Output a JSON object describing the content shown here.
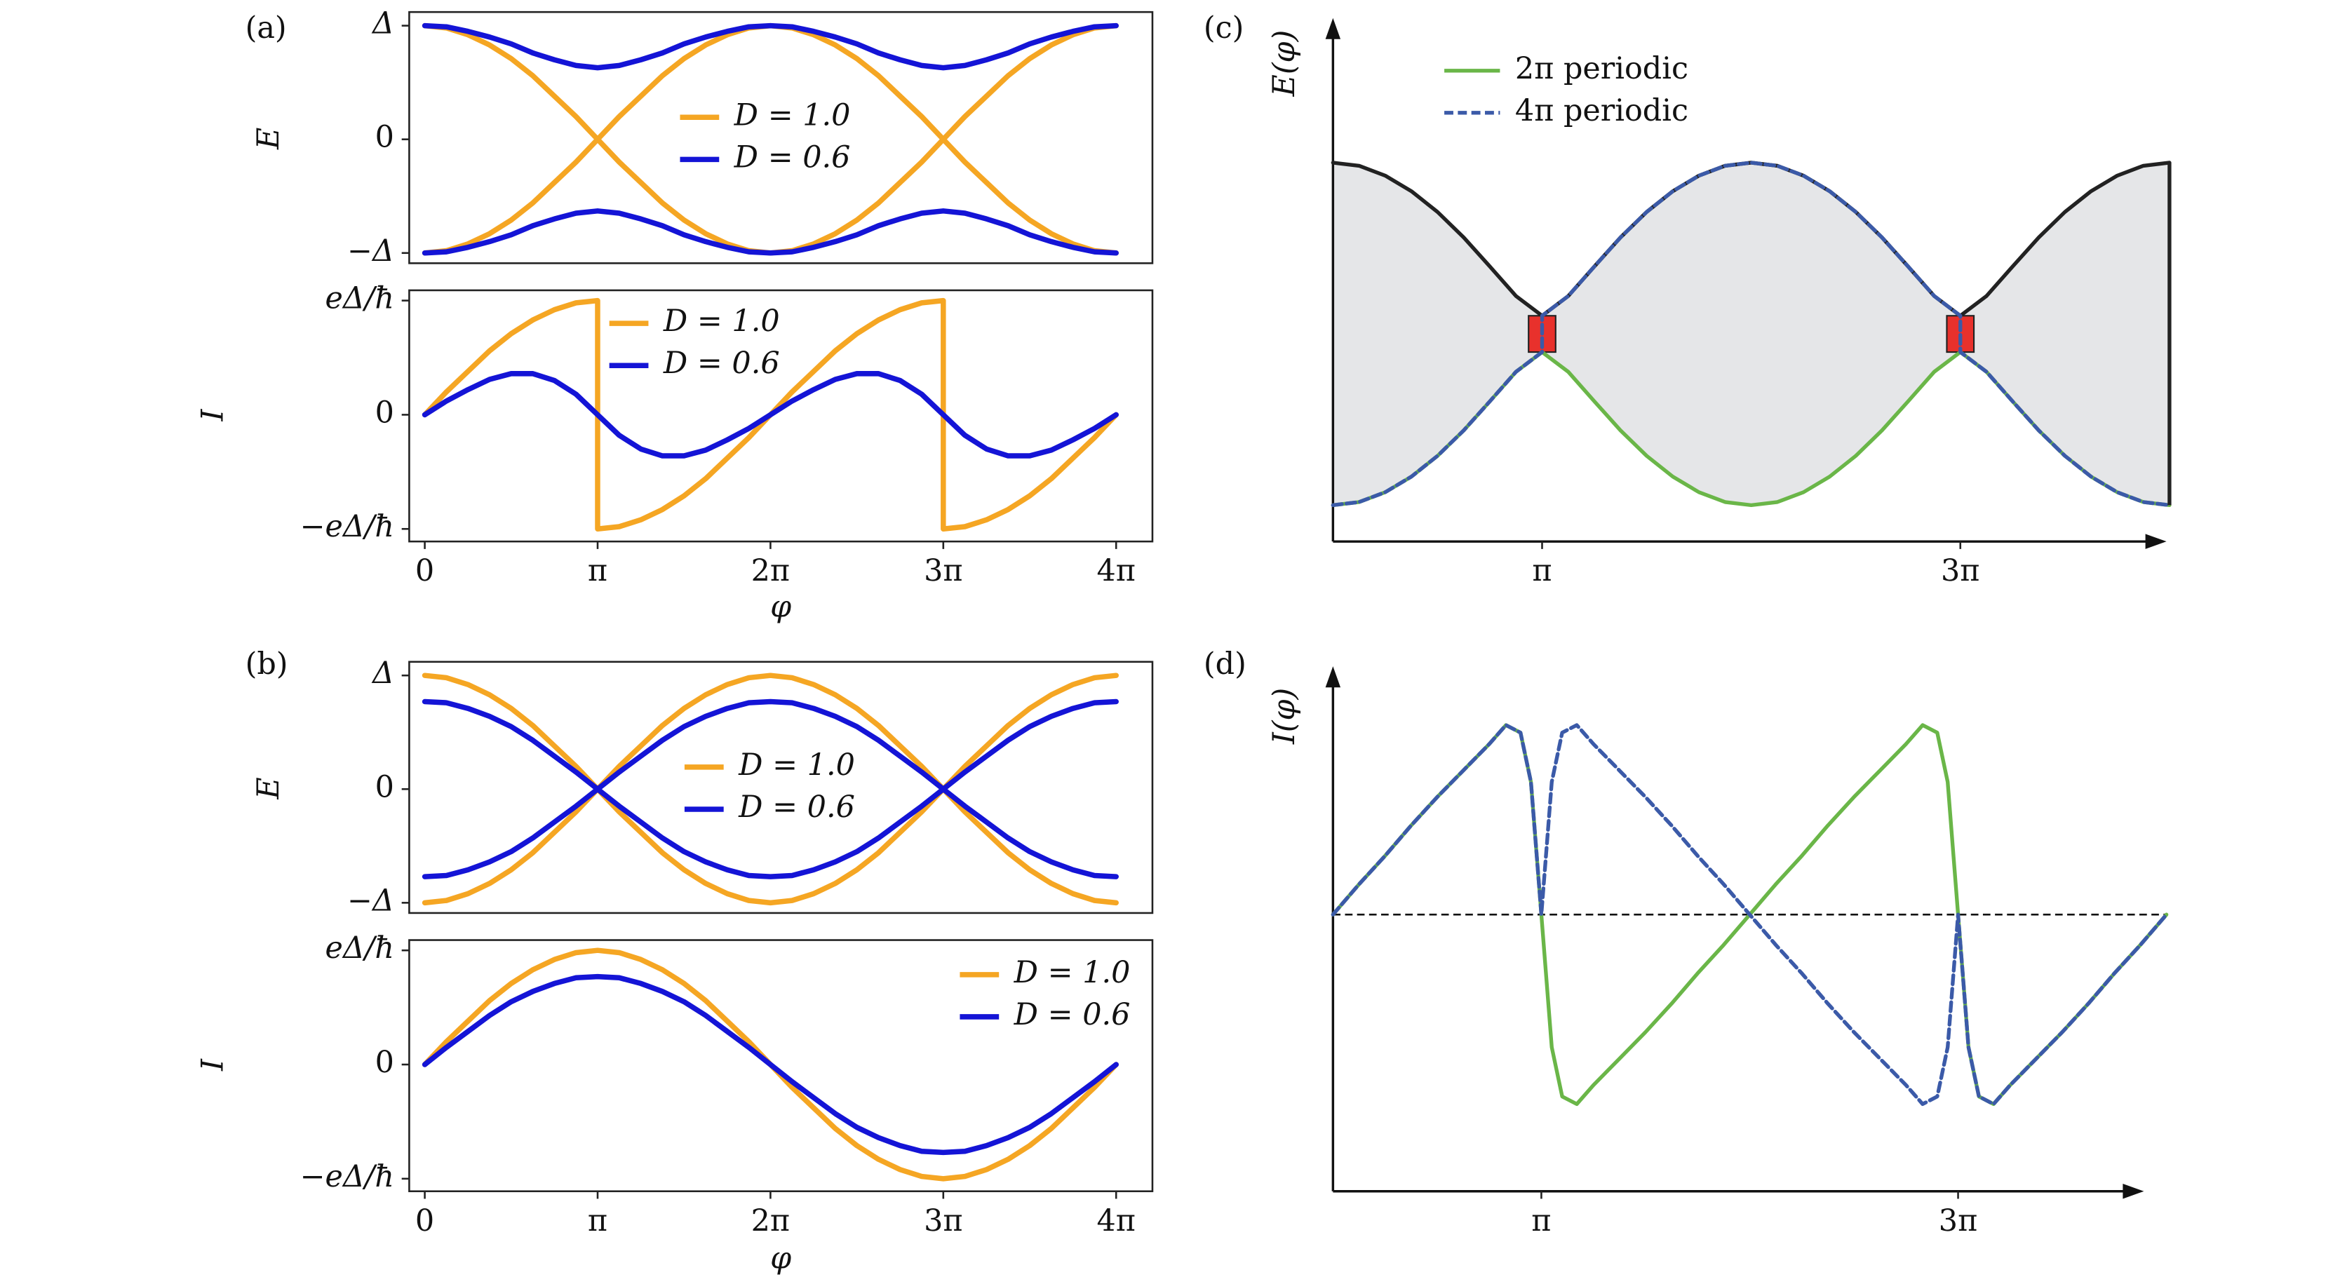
{
  "chart_data": [
    {
      "type": "line",
      "panel": "(a)",
      "ylabel": "E",
      "xlim": [
        -0.09,
        4.21
      ],
      "ylim": [
        -1.09,
        1.12
      ],
      "yticks": [
        {
          "value": -1,
          "label": "−Δ"
        },
        0,
        {
          "value": 1,
          "label": "Δ"
        }
      ],
      "x": [
        0,
        0.125,
        0.25,
        0.375,
        0.5,
        0.625,
        0.75,
        0.875,
        1,
        1.125,
        1.25,
        1.375,
        1.5,
        1.625,
        1.75,
        1.875,
        2,
        2.125,
        2.25,
        2.375,
        2.5,
        2.625,
        2.75,
        2.875,
        3,
        3.125,
        3.25,
        3.375,
        3.5,
        3.625,
        3.75,
        3.875,
        4
      ],
      "series": [
        {
          "name": "D = 1.0",
          "color": "#f5a623",
          "values": [
            1,
            0.98,
            0.92,
            0.83,
            0.71,
            0.56,
            0.38,
            0.2,
            0,
            -0.2,
            -0.38,
            -0.56,
            -0.71,
            -0.83,
            -0.92,
            -0.98,
            -1,
            -0.98,
            -0.92,
            -0.83,
            -0.71,
            -0.56,
            -0.38,
            -0.2,
            0,
            0.2,
            0.38,
            0.56,
            0.71,
            0.83,
            0.92,
            0.98,
            1
          ]
        },
        {
          "color": "#f5a623",
          "values": [
            -1,
            -0.98,
            -0.92,
            -0.83,
            -0.71,
            -0.56,
            -0.38,
            -0.2,
            0,
            0.2,
            0.38,
            0.56,
            0.71,
            0.83,
            0.92,
            0.98,
            1,
            0.98,
            0.92,
            0.83,
            0.71,
            0.56,
            0.38,
            0.2,
            0,
            -0.2,
            -0.38,
            -0.56,
            -0.71,
            -0.83,
            -0.92,
            -0.98,
            -1
          ]
        },
        {
          "name": "D = 0.6",
          "color": "#1414d6",
          "values": [
            1,
            0.99,
            0.95,
            0.9,
            0.84,
            0.76,
            0.7,
            0.65,
            0.63,
            0.65,
            0.7,
            0.76,
            0.84,
            0.9,
            0.95,
            0.99,
            1,
            0.99,
            0.95,
            0.9,
            0.84,
            0.76,
            0.7,
            0.65,
            0.63,
            0.65,
            0.7,
            0.76,
            0.84,
            0.9,
            0.95,
            0.99,
            1
          ]
        },
        {
          "color": "#1414d6",
          "values": [
            -1,
            -0.99,
            -0.95,
            -0.9,
            -0.84,
            -0.76,
            -0.7,
            -0.65,
            -0.63,
            -0.65,
            -0.7,
            -0.76,
            -0.84,
            -0.9,
            -0.95,
            -0.99,
            -1,
            -0.99,
            -0.95,
            -0.9,
            -0.84,
            -0.76,
            -0.7,
            -0.65,
            -0.63,
            -0.65,
            -0.7,
            -0.76,
            -0.84,
            -0.9,
            -0.95,
            -0.99,
            -1
          ]
        }
      ]
    },
    {
      "type": "line",
      "ylabel": "I",
      "xlabel": "φ",
      "xlim": [
        -0.09,
        4.21
      ],
      "ylim": [
        -1.11,
        1.09
      ],
      "xticks": [
        0,
        {
          "value": 1,
          "label": "π"
        },
        {
          "value": 2,
          "label": "2π"
        },
        {
          "value": 3,
          "label": "3π"
        },
        {
          "value": 4,
          "label": "4π"
        }
      ],
      "yticks": [
        {
          "value": -1,
          "label": "−eΔ/ħ"
        },
        0,
        {
          "value": 1,
          "label": "eΔ/ħ"
        }
      ],
      "x": [
        0,
        0.125,
        0.25,
        0.375,
        0.5,
        0.625,
        0.75,
        0.875,
        1,
        1.125,
        1.25,
        1.375,
        1.5,
        1.625,
        1.75,
        1.875,
        2,
        2.125,
        2.25,
        2.375,
        2.5,
        2.625,
        2.75,
        2.875,
        3,
        3.125,
        3.25,
        3.375,
        3.5,
        3.625,
        3.75,
        3.875,
        4
      ],
      "series": [
        {
          "name": "D = 1.0",
          "color": "#f5a623",
          "x": [
            0,
            0.125,
            0.25,
            0.375,
            0.5,
            0.625,
            0.75,
            0.875,
            1,
            1,
            1.125,
            1.25,
            1.375,
            1.5,
            1.625,
            1.75,
            1.875,
            2,
            2.125,
            2.25,
            2.375,
            2.5,
            2.625,
            2.75,
            2.875,
            3,
            3,
            3.125,
            3.25,
            3.375,
            3.5,
            3.625,
            3.75,
            3.875,
            4
          ],
          "values": [
            0,
            0.2,
            0.38,
            0.56,
            0.71,
            0.83,
            0.92,
            0.98,
            1,
            -1,
            -0.98,
            -0.92,
            -0.83,
            -0.71,
            -0.56,
            -0.38,
            -0.2,
            0,
            0.2,
            0.38,
            0.56,
            0.71,
            0.83,
            0.92,
            0.98,
            1,
            -1,
            -0.98,
            -0.92,
            -0.83,
            -0.71,
            -0.56,
            -0.38,
            -0.2,
            0
          ]
        },
        {
          "name": "D = 0.6",
          "color": "#1414d6",
          "values": [
            0,
            0.12,
            0.22,
            0.31,
            0.36,
            0.36,
            0.3,
            0.18,
            0,
            -0.18,
            -0.3,
            -0.36,
            -0.36,
            -0.31,
            -0.22,
            -0.12,
            0,
            0.12,
            0.22,
            0.31,
            0.36,
            0.36,
            0.3,
            0.18,
            0,
            -0.18,
            -0.3,
            -0.36,
            -0.36,
            -0.31,
            -0.22,
            -0.12,
            0
          ]
        }
      ]
    },
    {
      "type": "line",
      "panel": "(b)",
      "ylabel": "E",
      "xlim": [
        -0.09,
        4.21
      ],
      "ylim": [
        -1.09,
        1.12
      ],
      "yticks": [
        {
          "value": -1,
          "label": "−Δ"
        },
        0,
        {
          "value": 1,
          "label": "Δ"
        }
      ],
      "x": [
        0,
        0.125,
        0.25,
        0.375,
        0.5,
        0.625,
        0.75,
        0.875,
        1,
        1.125,
        1.25,
        1.375,
        1.5,
        1.625,
        1.75,
        1.875,
        2,
        2.125,
        2.25,
        2.375,
        2.5,
        2.625,
        2.75,
        2.875,
        3,
        3.125,
        3.25,
        3.375,
        3.5,
        3.625,
        3.75,
        3.875,
        4
      ],
      "series": [
        {
          "name": "D = 1.0",
          "color": "#f5a623",
          "values": [
            1,
            0.98,
            0.92,
            0.83,
            0.71,
            0.56,
            0.38,
            0.2,
            0,
            -0.2,
            -0.38,
            -0.56,
            -0.71,
            -0.83,
            -0.92,
            -0.98,
            -1,
            -0.98,
            -0.92,
            -0.83,
            -0.71,
            -0.56,
            -0.38,
            -0.2,
            0,
            0.2,
            0.38,
            0.56,
            0.71,
            0.83,
            0.92,
            0.98,
            1
          ]
        },
        {
          "color": "#f5a623",
          "values": [
            -1,
            -0.98,
            -0.92,
            -0.83,
            -0.71,
            -0.56,
            -0.38,
            -0.2,
            0,
            0.2,
            0.38,
            0.56,
            0.71,
            0.83,
            0.92,
            0.98,
            1,
            0.98,
            0.92,
            0.83,
            0.71,
            0.56,
            0.38,
            0.2,
            0,
            -0.2,
            -0.38,
            -0.56,
            -0.71,
            -0.83,
            -0.92,
            -0.98,
            -1
          ]
        },
        {
          "name": "D = 0.6",
          "color": "#1414d6",
          "values": [
            0.77,
            0.76,
            0.71,
            0.64,
            0.55,
            0.43,
            0.29,
            0.15,
            0,
            -0.15,
            -0.29,
            -0.43,
            -0.55,
            -0.64,
            -0.71,
            -0.76,
            -0.77,
            -0.76,
            -0.71,
            -0.64,
            -0.55,
            -0.43,
            -0.29,
            -0.15,
            0,
            0.15,
            0.29,
            0.43,
            0.55,
            0.64,
            0.71,
            0.76,
            0.77
          ]
        },
        {
          "color": "#1414d6",
          "values": [
            -0.77,
            -0.76,
            -0.71,
            -0.64,
            -0.55,
            -0.43,
            -0.29,
            -0.15,
            0,
            0.15,
            0.29,
            0.43,
            0.55,
            0.64,
            0.71,
            0.76,
            0.77,
            0.76,
            0.71,
            0.64,
            0.55,
            0.43,
            0.29,
            0.15,
            0,
            -0.15,
            -0.29,
            -0.43,
            -0.55,
            -0.64,
            -0.71,
            -0.76,
            -0.77
          ]
        }
      ]
    },
    {
      "type": "line",
      "ylabel": "I",
      "xlabel": "φ",
      "xlim": [
        -0.09,
        4.21
      ],
      "ylim": [
        -1.11,
        1.09
      ],
      "xticks": [
        0,
        {
          "value": 1,
          "label": "π"
        },
        {
          "value": 2,
          "label": "2π"
        },
        {
          "value": 3,
          "label": "3π"
        },
        {
          "value": 4,
          "label": "4π"
        }
      ],
      "yticks": [
        {
          "value": -1,
          "label": "−eΔ/ħ"
        },
        0,
        {
          "value": 1,
          "label": "eΔ/ħ"
        }
      ],
      "x": [
        0,
        0.125,
        0.25,
        0.375,
        0.5,
        0.625,
        0.75,
        0.875,
        1,
        1.125,
        1.25,
        1.375,
        1.5,
        1.625,
        1.75,
        1.875,
        2,
        2.125,
        2.25,
        2.375,
        2.5,
        2.625,
        2.75,
        2.875,
        3,
        3.125,
        3.25,
        3.375,
        3.5,
        3.625,
        3.75,
        3.875,
        4
      ],
      "series": [
        {
          "name": "D = 1.0",
          "color": "#f5a623",
          "values": [
            0,
            0.2,
            0.38,
            0.56,
            0.71,
            0.83,
            0.92,
            0.98,
            1,
            0.98,
            0.92,
            0.83,
            0.71,
            0.56,
            0.38,
            0.2,
            0,
            -0.2,
            -0.38,
            -0.56,
            -0.71,
            -0.83,
            -0.92,
            -0.98,
            -1,
            -0.98,
            -0.92,
            -0.83,
            -0.71,
            -0.56,
            -0.38,
            -0.2,
            0
          ]
        },
        {
          "name": "D = 0.6",
          "color": "#1414d6",
          "values": [
            0,
            0.15,
            0.29,
            0.43,
            0.55,
            0.64,
            0.71,
            0.76,
            0.77,
            0.76,
            0.71,
            0.64,
            0.55,
            0.43,
            0.29,
            0.15,
            0,
            -0.15,
            -0.29,
            -0.43,
            -0.55,
            -0.64,
            -0.71,
            -0.76,
            -0.77,
            -0.76,
            -0.71,
            -0.64,
            -0.55,
            -0.43,
            -0.29,
            -0.15,
            0
          ]
        }
      ]
    },
    {
      "type": "line",
      "panel": "(c)",
      "ylabel": "E(φ)",
      "xlim": [
        0,
        4
      ],
      "ylim": [
        0,
        10
      ],
      "xticks": [
        {
          "value": 1,
          "label": "π"
        },
        {
          "value": 3,
          "label": "3π"
        }
      ],
      "fill": "#e5e6e8",
      "highlight": "#e8312c",
      "x": [
        0,
        0.125,
        0.25,
        0.375,
        0.5,
        0.625,
        0.75,
        0.875,
        1,
        1.125,
        1.25,
        1.375,
        1.5,
        1.625,
        1.75,
        1.875,
        2,
        2.125,
        2.25,
        2.375,
        2.5,
        2.625,
        2.75,
        2.875,
        3,
        3.125,
        3.25,
        3.375,
        3.5,
        3.625,
        3.75,
        3.875,
        4
      ],
      "series": [
        {
          "color": "#222222",
          "values": [
            7.3,
            7.24,
            7.05,
            6.75,
            6.35,
            5.86,
            5.3,
            4.73,
            4.35,
            4.73,
            5.3,
            5.86,
            6.35,
            6.75,
            7.05,
            7.24,
            7.3,
            7.24,
            7.05,
            6.75,
            6.35,
            5.86,
            5.3,
            4.73,
            4.35,
            4.73,
            5.3,
            5.86,
            6.35,
            6.75,
            7.05,
            7.24,
            7.3
          ]
        },
        {
          "name": "2π periodic",
          "color": "#6ab648",
          "values": [
            0.7,
            0.76,
            0.95,
            1.25,
            1.65,
            2.14,
            2.7,
            3.27,
            3.65,
            3.27,
            2.7,
            2.14,
            1.65,
            1.25,
            0.95,
            0.76,
            0.7,
            0.76,
            0.95,
            1.25,
            1.65,
            2.14,
            2.7,
            3.27,
            3.65,
            3.27,
            2.7,
            2.14,
            1.65,
            1.25,
            0.95,
            0.76,
            0.7
          ]
        },
        {
          "name": "4π periodic",
          "color": "#3b5aa8",
          "dashed": true,
          "x": [
            0,
            0.125,
            0.25,
            0.375,
            0.5,
            0.625,
            0.75,
            0.875,
            1,
            1,
            1.125,
            1.25,
            1.375,
            1.5,
            1.625,
            1.75,
            1.875,
            2,
            2.125,
            2.25,
            2.375,
            2.5,
            2.625,
            2.75,
            2.875,
            3,
            3,
            3.125,
            3.25,
            3.375,
            3.5,
            3.625,
            3.75,
            3.875,
            4
          ],
          "values": [
            0.7,
            0.76,
            0.95,
            1.25,
            1.65,
            2.14,
            2.7,
            3.27,
            3.65,
            4.35,
            4.73,
            5.3,
            5.86,
            6.35,
            6.75,
            7.05,
            7.24,
            7.3,
            7.24,
            7.05,
            6.75,
            6.35,
            5.86,
            5.3,
            4.73,
            4.35,
            3.65,
            3.27,
            2.7,
            2.14,
            1.65,
            1.25,
            0.95,
            0.76,
            0.7
          ]
        }
      ]
    },
    {
      "type": "line",
      "panel": "(d)",
      "ylabel": "I(φ)",
      "xlim": [
        0,
        4
      ],
      "ylim": [
        -1.46,
        1.31
      ],
      "xticks": [
        {
          "value": 1,
          "label": "π"
        },
        {
          "value": 3,
          "label": "3π"
        }
      ],
      "hline": 0,
      "x": [
        0,
        0.125,
        0.25,
        0.375,
        0.5,
        0.625,
        0.75,
        0.83,
        0.9,
        0.95,
        1,
        1.05,
        1.1,
        1.17,
        1.25,
        1.375,
        1.5,
        1.625,
        1.75,
        1.875,
        2,
        2.125,
        2.25,
        2.375,
        2.5,
        2.625,
        2.75,
        2.83,
        2.9,
        2.95,
        3,
        3.05,
        3.1,
        3.17,
        3.25,
        3.375,
        3.5,
        3.625,
        3.75,
        3.875,
        4
      ],
      "series": [
        {
          "color": "#6ab648",
          "values": [
            0,
            0.16,
            0.31,
            0.47,
            0.62,
            0.76,
            0.9,
            1,
            0.96,
            0.7,
            0,
            -0.7,
            -0.96,
            -1,
            -0.9,
            -0.76,
            -0.62,
            -0.47,
            -0.31,
            -0.16,
            0,
            0.16,
            0.31,
            0.47,
            0.62,
            0.76,
            0.9,
            1,
            0.96,
            0.7,
            0,
            -0.7,
            -0.96,
            -1,
            -0.9,
            -0.76,
            -0.62,
            -0.47,
            -0.31,
            -0.16,
            0
          ]
        },
        {
          "color": "#3b5aa8",
          "dashed": true,
          "values": [
            0,
            0.16,
            0.31,
            0.47,
            0.62,
            0.76,
            0.9,
            1,
            0.96,
            0.7,
            0,
            0.7,
            0.96,
            1,
            0.9,
            0.76,
            0.62,
            0.47,
            0.31,
            0.16,
            0,
            -0.16,
            -0.31,
            -0.47,
            -0.62,
            -0.76,
            -0.9,
            -1,
            -0.96,
            -0.7,
            0,
            -0.7,
            -0.96,
            -1,
            -0.9,
            -0.76,
            -0.62,
            -0.47,
            -0.31,
            -0.16,
            0
          ]
        }
      ]
    }
  ]
}
